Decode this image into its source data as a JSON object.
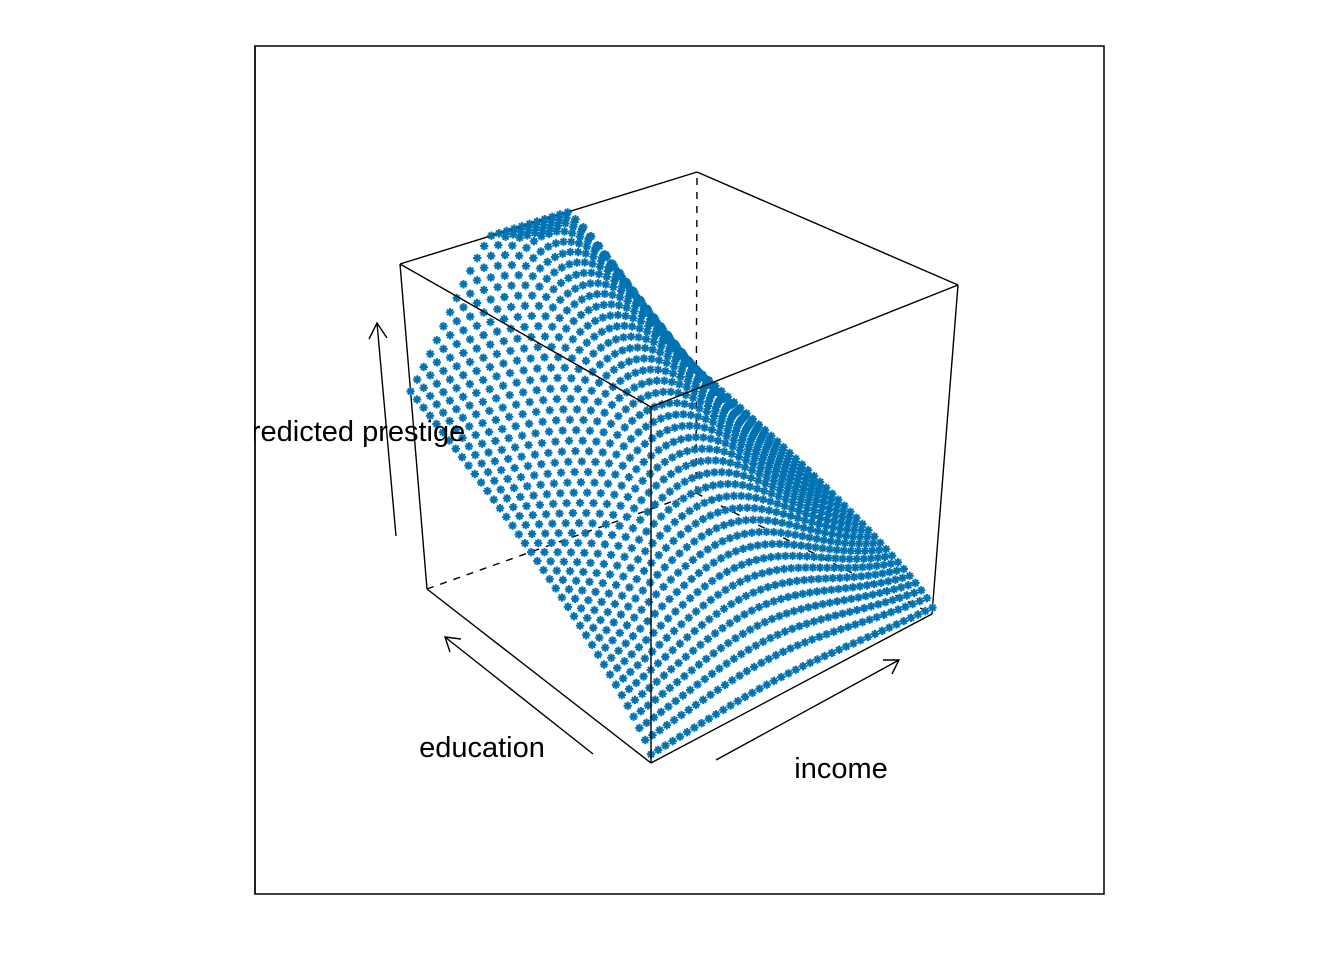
{
  "chart_data": {
    "type": "scatter",
    "subtype": "3d-perspective-surface",
    "marker": "*",
    "color": "#0072B2",
    "title": "",
    "axes": {
      "x": {
        "label": "income"
      },
      "y": {
        "label": "education"
      },
      "z": {
        "label": "predicted prestige"
      }
    },
    "grid": {
      "rows": 40,
      "cols": 40
    },
    "surface_shape": "predicted prestige rises with education; with income it rises to a peak and then declines, highest at high education and mid income",
    "box": true,
    "hidden_edges_dashed": true
  }
}
